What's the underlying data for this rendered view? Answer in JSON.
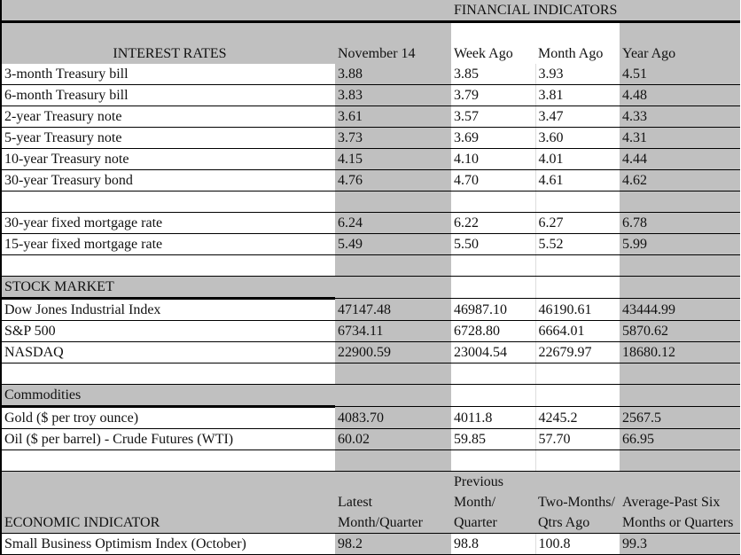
{
  "title": "FINANCIAL INDICATORS",
  "interest": {
    "header": [
      "INTEREST RATES",
      "November 14",
      "Week Ago",
      "Month Ago",
      "Year Ago"
    ],
    "rows": [
      [
        "3-month Treasury bill",
        "3.88",
        "3.85",
        "3.93",
        "4.51"
      ],
      [
        "6-month Treasury bill",
        "3.83",
        "3.79",
        "3.81",
        "4.48"
      ],
      [
        "2-year Treasury note",
        "3.61",
        "3.57",
        "3.47",
        "4.33"
      ],
      [
        "5-year Treasury note",
        "3.73",
        "3.69",
        "3.60",
        "4.31"
      ],
      [
        "10-year Treasury note",
        "4.15",
        "4.10",
        "4.01",
        "4.44"
      ],
      [
        "30-year Treasury bond",
        "4.76",
        "4.70",
        "4.61",
        "4.62"
      ]
    ],
    "mortgage": [
      [
        "30-year fixed mortgage rate",
        "6.24",
        "6.22",
        "6.27",
        "6.78"
      ],
      [
        "15-year fixed mortgage rate",
        "5.49",
        "5.50",
        "5.52",
        "5.99"
      ]
    ]
  },
  "stock": {
    "header": "STOCK MARKET",
    "rows": [
      [
        "Dow Jones Industrial Index",
        "47147.48",
        "46987.10",
        "46190.61",
        "43444.99"
      ],
      [
        "S&P 500",
        "6734.11",
        "6728.80",
        "6664.01",
        "5870.62"
      ],
      [
        "NASDAQ",
        "22900.59",
        "23004.54",
        "22679.97",
        "18680.12"
      ]
    ]
  },
  "commodities": {
    "header": "Commodities",
    "rows": [
      [
        "Gold ($ per troy ounce)",
        "4083.70",
        "4011.8",
        "4245.2",
        "2567.5"
      ],
      [
        "Oil ($ per barrel) - Crude Futures (WTI)",
        "60.02",
        "59.85",
        "57.70",
        "66.95"
      ]
    ]
  },
  "economic": {
    "header": [
      "ECONOMIC INDICATOR",
      "Latest Month/Quarter",
      "Previous Month/ Quarter",
      "Two-Months/ Qtrs Ago",
      "Average-Past Six Months or Quarters"
    ],
    "rows": [
      [
        "Small Business Optimism Index (October)",
        "98.2",
        "98.8",
        "100.8",
        "99.3"
      ]
    ]
  }
}
